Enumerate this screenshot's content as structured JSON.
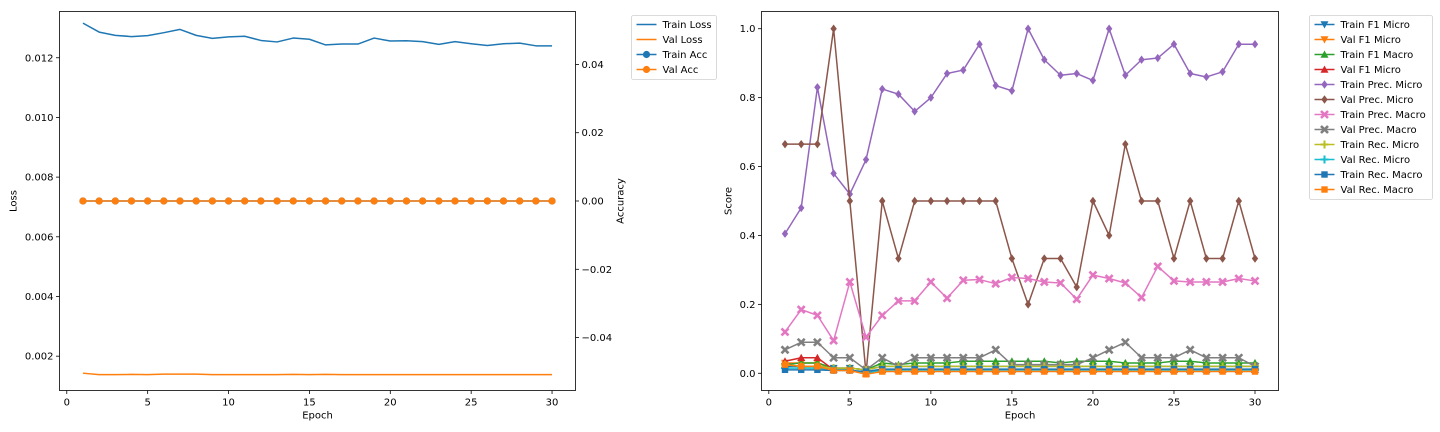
{
  "chart_data": [
    {
      "type": "line",
      "xlabel": "Epoch",
      "ylabel": "Loss",
      "y2label": "Accuracy",
      "xlim": [
        -0.45,
        31.45
      ],
      "ylim": [
        0.00085,
        0.01355
      ],
      "y2lim": [
        -0.0555,
        0.0555
      ],
      "xticks": [
        0,
        5,
        10,
        15,
        20,
        25,
        30
      ],
      "yticks": [
        0.002,
        0.004,
        0.006,
        0.008,
        0.01,
        0.012
      ],
      "y2ticks": [
        -0.04,
        -0.02,
        0.0,
        0.02,
        0.04
      ],
      "ytick_labels": [
        "0.002",
        "0.004",
        "0.006",
        "0.008",
        "0.010",
        "0.012"
      ],
      "y2tick_labels": [
        "−0.04",
        "−0.02",
        "0.00",
        "0.02",
        "0.04"
      ],
      "legend_position": "outside-right",
      "x": [
        1,
        2,
        3,
        4,
        5,
        6,
        7,
        8,
        9,
        10,
        11,
        12,
        13,
        14,
        15,
        16,
        17,
        18,
        19,
        20,
        21,
        22,
        23,
        24,
        25,
        26,
        27,
        28,
        29,
        30
      ],
      "series": [
        {
          "name": "Train Loss",
          "axis": "left",
          "color": "#1f77b4",
          "marker": "none",
          "values": [
            0.01316,
            0.01286,
            0.01275,
            0.01271,
            0.01274,
            0.01284,
            0.01295,
            0.01275,
            0.01265,
            0.0127,
            0.01272,
            0.01258,
            0.01253,
            0.01266,
            0.01262,
            0.01243,
            0.01246,
            0.01246,
            0.01266,
            0.01256,
            0.01257,
            0.01254,
            0.01245,
            0.01254,
            0.01247,
            0.01241,
            0.01247,
            0.01249,
            0.0124,
            0.0124
          ]
        },
        {
          "name": "Val Loss",
          "axis": "left",
          "color": "#ff7f0e",
          "marker": "none",
          "values": [
            0.00143,
            0.00138,
            0.00138,
            0.00139,
            0.00138,
            0.0014,
            0.0014,
            0.0014,
            0.00138,
            0.00138,
            0.00138,
            0.00138,
            0.00138,
            0.00139,
            0.00138,
            0.00139,
            0.00138,
            0.00138,
            0.00138,
            0.00138,
            0.00138,
            0.00138,
            0.00138,
            0.00138,
            0.00138,
            0.00138,
            0.00138,
            0.00138,
            0.00138,
            0.00138
          ]
        },
        {
          "name": "Train Acc",
          "axis": "right",
          "color": "#1f77b4",
          "marker": "circle",
          "values": [
            0,
            0,
            0,
            0,
            0,
            0,
            0,
            0,
            0,
            0,
            0,
            0,
            0,
            0,
            0,
            0,
            0,
            0,
            0,
            0,
            0,
            0,
            0,
            0,
            0,
            0,
            0,
            0,
            0,
            0
          ]
        },
        {
          "name": "Val Acc",
          "axis": "right",
          "color": "#ff7f0e",
          "marker": "circle",
          "values": [
            0,
            0,
            0,
            0,
            0,
            0,
            0,
            0,
            0,
            0,
            0,
            0,
            0,
            0,
            0,
            0,
            0,
            0,
            0,
            0,
            0,
            0,
            0,
            0,
            0,
            0,
            0,
            0,
            0,
            0
          ]
        }
      ]
    },
    {
      "type": "line",
      "xlabel": "Epoch",
      "ylabel": "Score",
      "xlim": [
        -0.45,
        31.45
      ],
      "ylim": [
        -0.05,
        1.05
      ],
      "xticks": [
        0,
        5,
        10,
        15,
        20,
        25,
        30
      ],
      "yticks": [
        0.0,
        0.2,
        0.4,
        0.6,
        0.8,
        1.0
      ],
      "ytick_labels": [
        "0.0",
        "0.2",
        "0.4",
        "0.6",
        "0.8",
        "1.0"
      ],
      "legend_position": "outside-right",
      "x": [
        1,
        2,
        3,
        4,
        5,
        6,
        7,
        8,
        9,
        10,
        11,
        12,
        13,
        14,
        15,
        16,
        17,
        18,
        19,
        20,
        21,
        22,
        23,
        24,
        25,
        26,
        27,
        28,
        29,
        30
      ],
      "series": [
        {
          "name": "Train F1 Micro",
          "color": "#1f77b4",
          "marker": "triangle-down",
          "values": [
            0.02,
            0.02,
            0.02,
            0.015,
            0.015,
            0.01,
            0.02,
            0.02,
            0.02,
            0.02,
            0.02,
            0.02,
            0.02,
            0.02,
            0.02,
            0.02,
            0.02,
            0.02,
            0.02,
            0.02,
            0.02,
            0.02,
            0.02,
            0.02,
            0.02,
            0.02,
            0.02,
            0.02,
            0.02,
            0.02
          ]
        },
        {
          "name": "Val F1 Micro",
          "color": "#ff7f0e",
          "marker": "triangle-down",
          "values": [
            0.03,
            0.03,
            0.03,
            0.01,
            0.01,
            0.0,
            0.01,
            0.01,
            0.01,
            0.01,
            0.01,
            0.01,
            0.01,
            0.01,
            0.01,
            0.01,
            0.01,
            0.01,
            0.01,
            0.01,
            0.01,
            0.01,
            0.01,
            0.01,
            0.01,
            0.01,
            0.01,
            0.01,
            0.01,
            0.01
          ]
        },
        {
          "name": "Train F1 Macro",
          "color": "#2ca02c",
          "marker": "triangle-up",
          "values": [
            0.025,
            0.03,
            0.03,
            0.015,
            0.015,
            0.01,
            0.03,
            0.025,
            0.03,
            0.03,
            0.03,
            0.035,
            0.035,
            0.035,
            0.035,
            0.035,
            0.035,
            0.03,
            0.035,
            0.035,
            0.035,
            0.03,
            0.03,
            0.03,
            0.035,
            0.035,
            0.03,
            0.03,
            0.03,
            0.03
          ]
        },
        {
          "name": "Val F1 Micro",
          "color": "#d62728",
          "marker": "triangle-up",
          "values": [
            0.035,
            0.045,
            0.045,
            0.01,
            0.01,
            0.0,
            0.01,
            0.01,
            0.01,
            0.01,
            0.01,
            0.01,
            0.01,
            0.01,
            0.01,
            0.01,
            0.01,
            0.01,
            0.01,
            0.01,
            0.01,
            0.01,
            0.01,
            0.01,
            0.01,
            0.01,
            0.01,
            0.01,
            0.01,
            0.01
          ]
        },
        {
          "name": "Train Prec. Micro",
          "color": "#9467bd",
          "marker": "diamond",
          "values": [
            0.405,
            0.48,
            0.83,
            0.58,
            0.52,
            0.62,
            0.825,
            0.81,
            0.76,
            0.8,
            0.87,
            0.88,
            0.955,
            0.835,
            0.82,
            1.0,
            0.91,
            0.865,
            0.87,
            0.85,
            1.0,
            0.865,
            0.91,
            0.915,
            0.955,
            0.87,
            0.86,
            0.875,
            0.955,
            0.955
          ]
        },
        {
          "name": "Val Prec. Micro",
          "color": "#8c564b",
          "marker": "diamond",
          "values": [
            0.665,
            0.665,
            0.665,
            1.0,
            0.5,
            0.0,
            0.5,
            0.333,
            0.5,
            0.5,
            0.5,
            0.5,
            0.5,
            0.5,
            0.333,
            0.2,
            0.333,
            0.333,
            0.25,
            0.5,
            0.4,
            0.665,
            0.5,
            0.5,
            0.333,
            0.5,
            0.333,
            0.333,
            0.5,
            0.333
          ]
        },
        {
          "name": "Train Prec. Macro",
          "color": "#e377c2",
          "marker": "x-filled",
          "values": [
            0.12,
            0.185,
            0.168,
            0.095,
            0.265,
            0.105,
            0.168,
            0.21,
            0.21,
            0.265,
            0.218,
            0.27,
            0.272,
            0.26,
            0.278,
            0.275,
            0.265,
            0.262,
            0.215,
            0.285,
            0.275,
            0.262,
            0.22,
            0.31,
            0.268,
            0.265,
            0.265,
            0.265,
            0.275,
            0.268
          ]
        },
        {
          "name": "Val Prec. Macro",
          "color": "#7f7f7f",
          "marker": "x-filled",
          "values": [
            0.068,
            0.09,
            0.09,
            0.045,
            0.045,
            0.01,
            0.045,
            0.02,
            0.045,
            0.045,
            0.045,
            0.045,
            0.045,
            0.068,
            0.025,
            0.025,
            0.025,
            0.025,
            0.025,
            0.045,
            0.068,
            0.09,
            0.045,
            0.045,
            0.045,
            0.068,
            0.045,
            0.045,
            0.045,
            0.02
          ]
        },
        {
          "name": "Train Rec. Micro",
          "color": "#bcbd22",
          "marker": "plus",
          "values": [
            0.025,
            0.02,
            0.02,
            0.015,
            0.015,
            0.01,
            0.02,
            0.02,
            0.02,
            0.02,
            0.02,
            0.02,
            0.02,
            0.02,
            0.02,
            0.02,
            0.02,
            0.02,
            0.02,
            0.02,
            0.02,
            0.02,
            0.02,
            0.02,
            0.02,
            0.02,
            0.02,
            0.02,
            0.02,
            0.02
          ]
        },
        {
          "name": "Val Rec. Micro",
          "color": "#17becf",
          "marker": "plus",
          "values": [
            0.015,
            0.015,
            0.015,
            0.01,
            0.01,
            0.0,
            0.01,
            0.01,
            0.01,
            0.01,
            0.01,
            0.01,
            0.01,
            0.01,
            0.01,
            0.01,
            0.01,
            0.01,
            0.01,
            0.01,
            0.01,
            0.01,
            0.01,
            0.01,
            0.01,
            0.01,
            0.01,
            0.01,
            0.01,
            0.01
          ]
        },
        {
          "name": "Train Rec. Macro",
          "color": "#1f77b4",
          "marker": "square",
          "values": [
            0.01,
            0.01,
            0.01,
            0.008,
            0.008,
            0.005,
            0.012,
            0.012,
            0.012,
            0.012,
            0.012,
            0.012,
            0.012,
            0.012,
            0.012,
            0.012,
            0.012,
            0.012,
            0.012,
            0.012,
            0.012,
            0.012,
            0.012,
            0.012,
            0.012,
            0.012,
            0.012,
            0.012,
            0.012,
            0.012
          ]
        },
        {
          "name": "Val Rec. Macro",
          "color": "#ff7f0e",
          "marker": "square",
          "values": [
            0.025,
            0.02,
            0.02,
            0.008,
            0.008,
            -0.003,
            0.005,
            0.005,
            0.005,
            0.005,
            0.005,
            0.005,
            0.005,
            0.005,
            0.005,
            0.005,
            0.005,
            0.005,
            0.005,
            0.005,
            0.005,
            0.005,
            0.005,
            0.005,
            0.005,
            0.005,
            0.005,
            0.005,
            0.005,
            0.005
          ]
        }
      ]
    }
  ]
}
